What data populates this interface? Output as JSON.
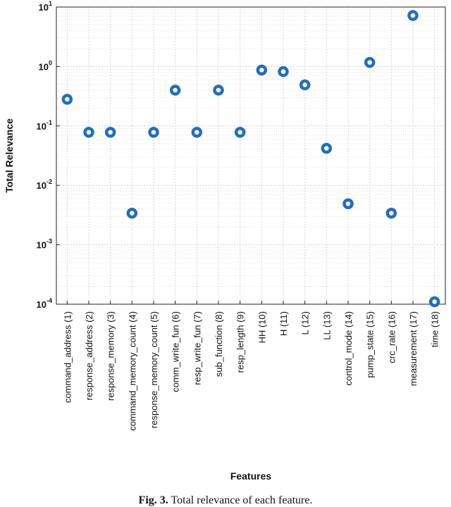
{
  "chart_data": {
    "type": "scatter",
    "x_label": "Features",
    "y_label": "Total Relevance",
    "categories": [
      "command_address (1)",
      "response_address (2)",
      "response_memory (3)",
      "command_memory_count (4)",
      "response_memory_count (5)",
      "comm_write_fun (6)",
      "resp_write_fun (7)",
      "sub_function (8)",
      "resp_length (9)",
      "HH (10)",
      "H (11)",
      "L (12)",
      "LL (13)",
      "control_mode (14)",
      "pump_state (15)",
      "crc_rate (16)",
      "measurement (17)",
      "time (18)"
    ],
    "values": [
      0.28,
      0.078,
      0.078,
      0.0034,
      0.078,
      0.4,
      0.078,
      0.4,
      0.078,
      0.87,
      0.82,
      0.49,
      0.042,
      0.0049,
      1.17,
      0.0034,
      7.2,
      0.00011
    ],
    "color": "#1f6fc0",
    "y_scale": "log",
    "ylim": [
      0.0001,
      10
    ],
    "yticks": [
      {
        "value": 0.0001,
        "label": "10",
        "exponent": "-4"
      },
      {
        "value": 0.001,
        "label": "10",
        "exponent": "-3"
      },
      {
        "value": 0.01,
        "label": "10",
        "exponent": "-2"
      },
      {
        "value": 0.1,
        "label": "10",
        "exponent": "-1"
      },
      {
        "value": 1,
        "label": "10",
        "exponent": "0"
      },
      {
        "value": 10,
        "label": "10",
        "exponent": "1"
      }
    ],
    "grid": true
  },
  "caption": {
    "label": "Fig. 3.",
    "text": "Total relevance of each feature."
  }
}
